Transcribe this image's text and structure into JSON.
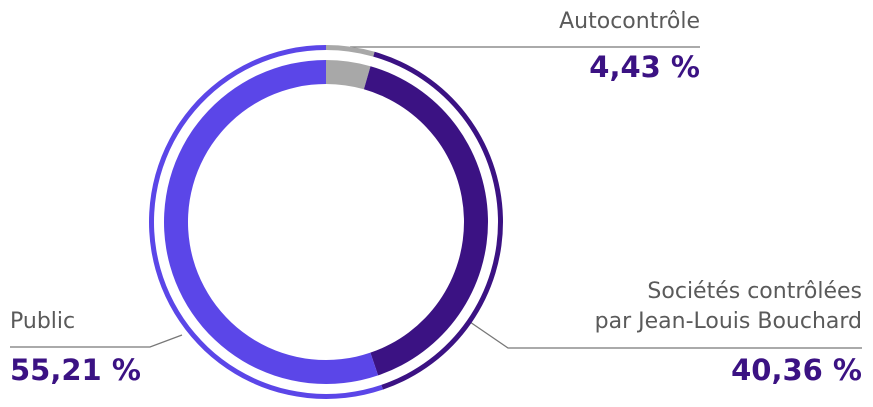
{
  "chart_data": {
    "type": "donut",
    "categories": [
      "Autocontrôle",
      [
        "Sociétés contrôlées",
        "par Jean-Louis Bouchard"
      ],
      "Public"
    ],
    "values": [
      4.43,
      40.36,
      55.21
    ],
    "value_labels": [
      "4,43 %",
      "40,36 %",
      "55,21 %"
    ],
    "colors": [
      "#a8a8a8",
      "#3b1283",
      "#5b46e8"
    ]
  }
}
